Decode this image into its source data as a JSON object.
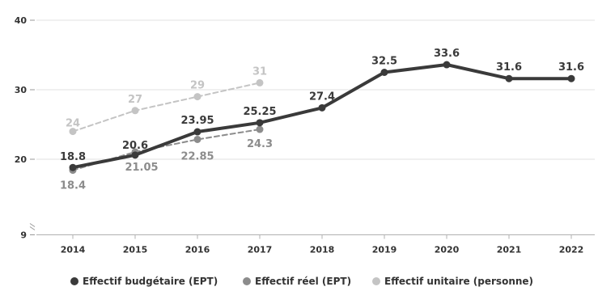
{
  "chart_data": {
    "type": "line",
    "x": [
      2014,
      2015,
      2016,
      2017,
      2018,
      2019,
      2020,
      2021,
      2022
    ],
    "x_tick_labels": [
      "2014",
      "2015",
      "2016",
      "2017",
      "2018",
      "2019",
      "2020",
      "2021",
      "2022"
    ],
    "y_tick_values": [
      9,
      20,
      30,
      40
    ],
    "y_tick_labels": [
      "9",
      "20",
      "30",
      "40"
    ],
    "ylim": [
      9,
      40
    ],
    "y_axis_break": true,
    "grid": "horizontal",
    "legend_position": "bottom",
    "series": [
      {
        "name": "Effectif budgétaire (EPT)",
        "color": "#3a3a3a",
        "style": "solid",
        "x": [
          2014,
          2015,
          2016,
          2017,
          2018,
          2019,
          2020,
          2021,
          2022
        ],
        "values": [
          18.8,
          20.6,
          23.95,
          25.25,
          27.4,
          32.5,
          33.6,
          31.6,
          31.6
        ],
        "labels": [
          "18.8",
          "20.6",
          "23.95",
          "25.25",
          "27.4",
          "32.5",
          "33.6",
          "31.6",
          "31.6"
        ]
      },
      {
        "name": "Effectif réel (EPT)",
        "color": "#8c8c8c",
        "style": "dashed",
        "x": [
          2014,
          2015,
          2016,
          2017
        ],
        "values": [
          18.4,
          21.05,
          22.85,
          24.3
        ],
        "labels": [
          "18.4",
          "21.05",
          "22.85",
          "24.3"
        ]
      },
      {
        "name": "Effectif unitaire (personne)",
        "color": "#c4c4c4",
        "style": "dashed",
        "x": [
          2014,
          2015,
          2016,
          2017
        ],
        "values": [
          24,
          27,
          29,
          31
        ],
        "labels": [
          "24",
          "27",
          "29",
          "31"
        ]
      }
    ]
  }
}
